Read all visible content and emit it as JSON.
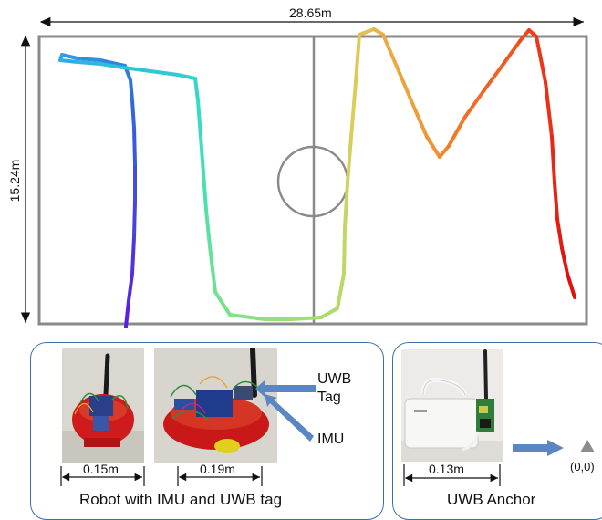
{
  "field": {
    "width_label": "28.65m",
    "height_label": "15.24m"
  },
  "trajectory_colors": [
    "#5a1fe0",
    "#2f6fe0",
    "#2fb4e0",
    "#36e0c0",
    "#9ee070",
    "#e0cc5a",
    "#f0902f",
    "#f03a1a",
    "#e0100c"
  ],
  "robot_panel": {
    "caption": "Robot with IMU and UWB tag",
    "robot_small_width": "0.15m",
    "robot_large_width": "0.19m",
    "uwb_tag_label_line1": "UWB",
    "uwb_tag_label_line2": "Tag",
    "imu_label": "IMU"
  },
  "anchor_panel": {
    "caption": "UWB Anchor",
    "anchor_width": "0.13m",
    "origin_label": "(0,0)"
  },
  "colors": {
    "panel_border": "#3f6fa8",
    "arrow_fill": "#5b86c4",
    "field_lines": "#8a8a8a",
    "origin_marker": "#8c8c8c"
  }
}
